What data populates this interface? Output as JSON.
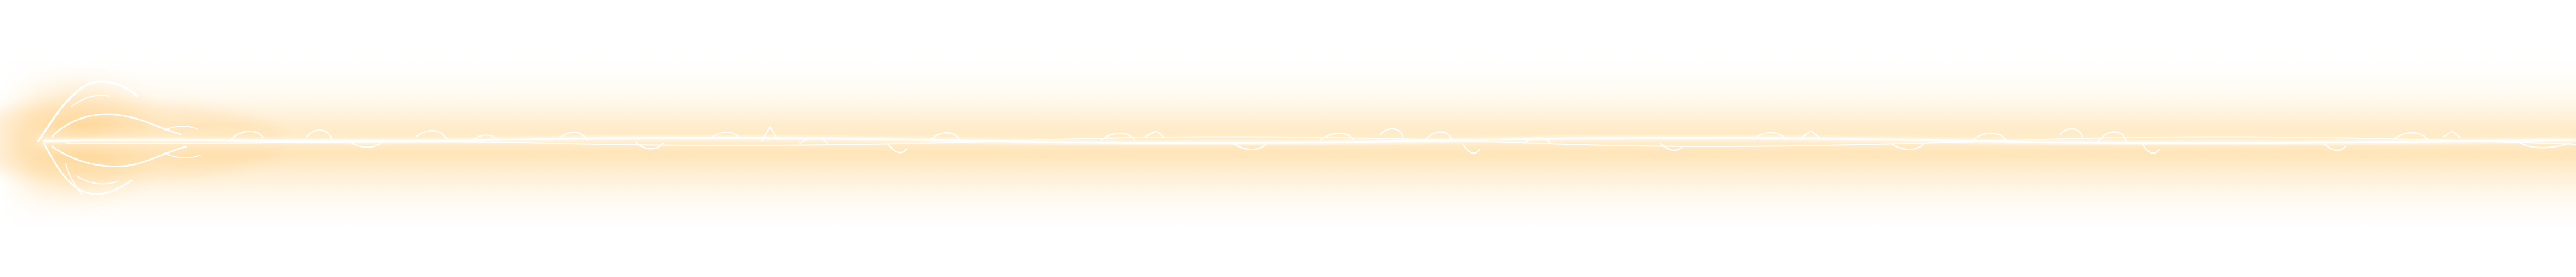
{
  "graphic": {
    "description_icon": "glowing-vine-divider-icon",
    "colors": {
      "background": "#ffffff",
      "glow_outer": "#ffe6b8",
      "glow_inner": "#fff3dc",
      "vine": "#ffffff"
    }
  }
}
